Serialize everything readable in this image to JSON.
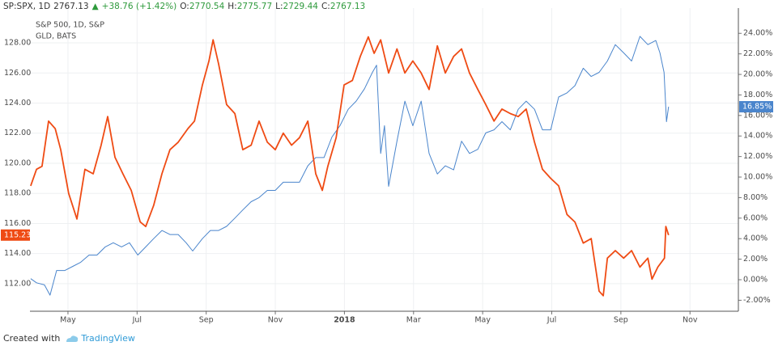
{
  "header": {
    "symbol": "SP:SPX, 1D",
    "last": "2767.13",
    "arrow": "▲",
    "change": "+38.76 (+1.42%)",
    "open_label": "O:",
    "open": "2770.54",
    "high_label": "H:",
    "high": "2775.77",
    "low_label": "L:",
    "low": "2729.44",
    "close_label": "C:",
    "close": "2767.13"
  },
  "footer": {
    "created": "Created with",
    "brand": "TradingView"
  },
  "chart_data": {
    "type": "line",
    "grid": true,
    "xlim": [
      3.9,
      24.4
    ],
    "xticks": [
      {
        "value": 5,
        "label": "May"
      },
      {
        "value": 7,
        "label": "Jul"
      },
      {
        "value": 9,
        "label": "Sep"
      },
      {
        "value": 11,
        "label": "Nov"
      },
      {
        "value": 13,
        "label": "2018"
      },
      {
        "value": 15,
        "label": "Mar"
      },
      {
        "value": 17,
        "label": "May"
      },
      {
        "value": 19,
        "label": "Jul"
      },
      {
        "value": 21,
        "label": "Sep"
      },
      {
        "value": 23,
        "label": "Nov"
      }
    ],
    "ylim": [
      110.17,
      130.31
    ],
    "yticks": [
      {
        "value": 112,
        "label": "112.00"
      },
      {
        "value": 114,
        "label": "114.00"
      },
      {
        "value": 116,
        "label": "116.00"
      },
      {
        "value": 118,
        "label": "118.00"
      },
      {
        "value": 120,
        "label": "120.00"
      },
      {
        "value": 122,
        "label": "122.00"
      },
      {
        "value": 124,
        "label": "124.00"
      },
      {
        "value": 126,
        "label": "126.00"
      },
      {
        "value": 128,
        "label": "128.00"
      }
    ],
    "y2lim": [
      -3.07,
      26.46
    ],
    "y2ticks": [
      {
        "value": -2,
        "label": "-2.00%"
      },
      {
        "value": 0,
        "label": "0.00%"
      },
      {
        "value": 2,
        "label": "2.00%"
      },
      {
        "value": 4,
        "label": "4.00%"
      },
      {
        "value": 6,
        "label": "6.00%"
      },
      {
        "value": 8,
        "label": "8.00%"
      },
      {
        "value": 10,
        "label": "10.00%"
      },
      {
        "value": 12,
        "label": "12.00%"
      },
      {
        "value": 14,
        "label": "14.00%"
      },
      {
        "value": 16,
        "label": "16.00%"
      },
      {
        "value": 18,
        "label": "18.00%"
      },
      {
        "value": 20,
        "label": "20.00%"
      },
      {
        "value": 22,
        "label": "22.00%"
      },
      {
        "value": 24,
        "label": "24.00%"
      }
    ],
    "series": [
      {
        "name": "S&P 500, 1D, S&P",
        "color": "#4a85cc",
        "axis": "y2",
        "last_value_label": "16.85%",
        "x": [
          3.92,
          4.09,
          4.32,
          4.48,
          4.67,
          4.91,
          5.14,
          5.37,
          5.61,
          5.84,
          6.08,
          6.31,
          6.55,
          6.78,
          7.02,
          7.25,
          7.48,
          7.72,
          7.95,
          8.19,
          8.42,
          8.61,
          8.89,
          9.12,
          9.36,
          9.59,
          9.83,
          10.06,
          10.3,
          10.53,
          10.77,
          11.0,
          11.23,
          11.47,
          11.7,
          11.94,
          12.17,
          12.41,
          12.64,
          12.87,
          13.11,
          13.34,
          13.58,
          13.81,
          13.93,
          14.05,
          14.16,
          14.28,
          14.52,
          14.75,
          14.98,
          15.22,
          15.45,
          15.69,
          15.92,
          16.16,
          16.39,
          16.62,
          16.86,
          17.09,
          17.33,
          17.56,
          17.8,
          18.03,
          18.26,
          18.5,
          18.73,
          18.97,
          19.2,
          19.44,
          19.67,
          19.91,
          20.14,
          20.37,
          20.61,
          20.84,
          21.08,
          21.31,
          21.55,
          21.78,
          22.01,
          22.13,
          22.25,
          22.32,
          22.38
        ],
        "values": [
          0.1,
          -0.3,
          -0.5,
          -1.5,
          0.9,
          0.9,
          1.3,
          1.7,
          2.4,
          2.4,
          3.2,
          3.6,
          3.2,
          3.6,
          2.4,
          3.2,
          4.0,
          4.8,
          4.4,
          4.4,
          3.6,
          2.8,
          4.0,
          4.8,
          4.8,
          5.2,
          6.0,
          6.8,
          7.6,
          8.0,
          8.7,
          8.7,
          9.5,
          9.5,
          9.5,
          11.1,
          11.9,
          11.9,
          13.9,
          15.0,
          16.6,
          17.4,
          18.6,
          20.2,
          20.9,
          12.3,
          15.0,
          9.1,
          13.5,
          17.4,
          15.0,
          17.4,
          12.3,
          10.3,
          11.1,
          10.7,
          13.5,
          12.3,
          12.7,
          14.3,
          14.6,
          15.4,
          14.6,
          16.6,
          17.4,
          16.6,
          14.6,
          14.6,
          17.8,
          18.2,
          18.9,
          20.6,
          19.8,
          20.2,
          21.3,
          22.9,
          22.1,
          21.3,
          23.7,
          22.9,
          23.3,
          22.1,
          20.2,
          15.4,
          16.85
        ]
      },
      {
        "name": "GLD, BATS",
        "color": "#ef4b14",
        "x": [
          3.92,
          4.09,
          4.25,
          4.44,
          4.63,
          4.79,
          5.02,
          5.26,
          5.49,
          5.73,
          5.96,
          6.15,
          6.36,
          6.59,
          6.83,
          7.09,
          7.25,
          7.48,
          7.72,
          7.95,
          8.19,
          8.47,
          8.66,
          8.89,
          9.08,
          9.2,
          9.36,
          9.59,
          9.83,
          10.06,
          10.3,
          10.53,
          10.77,
          11.0,
          11.23,
          11.47,
          11.7,
          11.94,
          12.17,
          12.36,
          12.52,
          12.76,
          12.99,
          13.23,
          13.46,
          13.69,
          13.86,
          14.05,
          14.28,
          14.52,
          14.75,
          14.98,
          15.22,
          15.45,
          15.69,
          15.92,
          16.16,
          16.39,
          16.62,
          16.86,
          17.09,
          17.33,
          17.56,
          17.8,
          18.03,
          18.26,
          18.5,
          18.73,
          18.97,
          19.2,
          19.44,
          19.67,
          19.91,
          20.14,
          20.37,
          20.49,
          20.61,
          20.84,
          21.08,
          21.31,
          21.55,
          21.78,
          21.9,
          22.07,
          22.26,
          22.3,
          22.38
        ],
        "values": [
          118.5,
          119.6,
          119.8,
          122.8,
          122.3,
          120.9,
          118.0,
          116.3,
          119.6,
          119.3,
          121.2,
          123.1,
          120.4,
          119.3,
          118.2,
          116.1,
          115.8,
          117.2,
          119.3,
          120.9,
          121.4,
          122.3,
          122.8,
          125.2,
          126.8,
          128.2,
          126.6,
          123.9,
          123.3,
          120.9,
          121.2,
          122.8,
          121.4,
          120.9,
          122.0,
          121.2,
          121.7,
          122.8,
          119.3,
          118.2,
          119.8,
          121.7,
          125.2,
          125.5,
          127.1,
          128.4,
          127.3,
          128.2,
          126.0,
          127.6,
          126.0,
          126.8,
          126.0,
          124.9,
          127.8,
          126.0,
          127.1,
          127.6,
          126.0,
          124.9,
          123.9,
          122.8,
          123.6,
          123.3,
          123.1,
          123.6,
          121.4,
          119.6,
          119.0,
          118.5,
          116.6,
          116.1,
          114.7,
          115.0,
          111.5,
          111.2,
          113.7,
          114.2,
          113.7,
          114.2,
          113.1,
          113.7,
          112.3,
          113.1,
          113.7,
          115.8,
          115.23
        ]
      }
    ]
  }
}
